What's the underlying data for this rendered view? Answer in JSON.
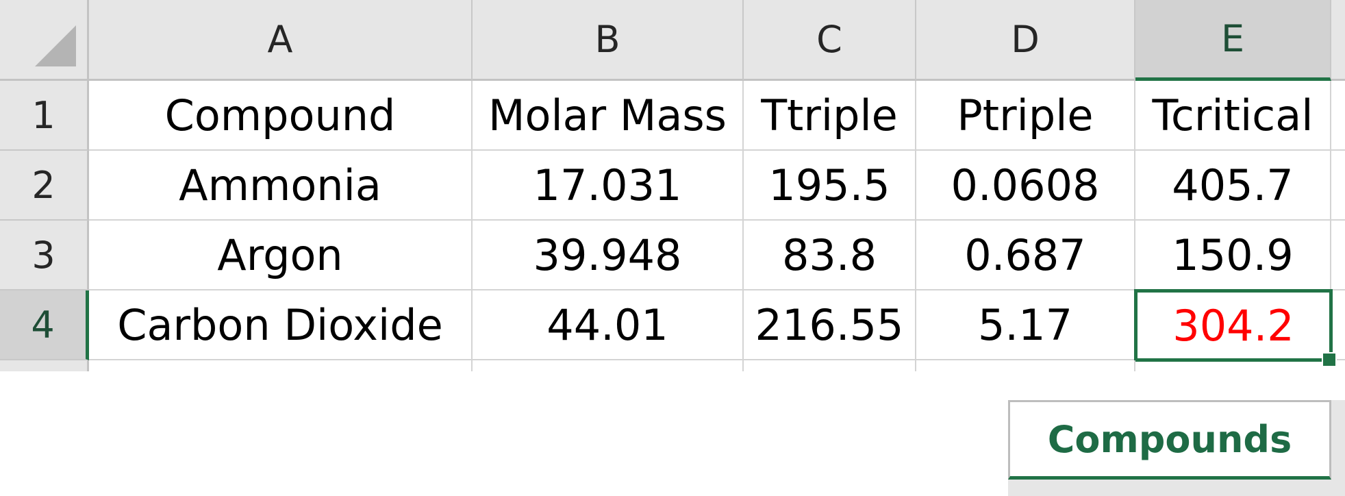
{
  "sheet": {
    "columns": [
      "A",
      "B",
      "C",
      "D",
      "E"
    ],
    "selected_column": "E",
    "rows": [
      "1",
      "2",
      "3",
      "4"
    ],
    "selected_row": "4",
    "cells": [
      [
        "Compound",
        "Molar Mass",
        "Ttriple",
        "Ptriple",
        "Tcritical"
      ],
      [
        "Ammonia",
        "17.031",
        "195.5",
        "0.0608",
        "405.7"
      ],
      [
        "Argon",
        "39.948",
        "83.8",
        "0.687",
        "150.9"
      ],
      [
        "Carbon Dioxide",
        "44.01",
        "216.55",
        "5.17",
        "304.2"
      ]
    ],
    "active_cell": "E4",
    "active_cell_text_color": "#ff0000"
  },
  "tabs": {
    "active_tab": "Compounds"
  },
  "colors": {
    "accent": "#217346",
    "header_bg": "#e6e6e6",
    "gridline": "#d4d4d4"
  }
}
